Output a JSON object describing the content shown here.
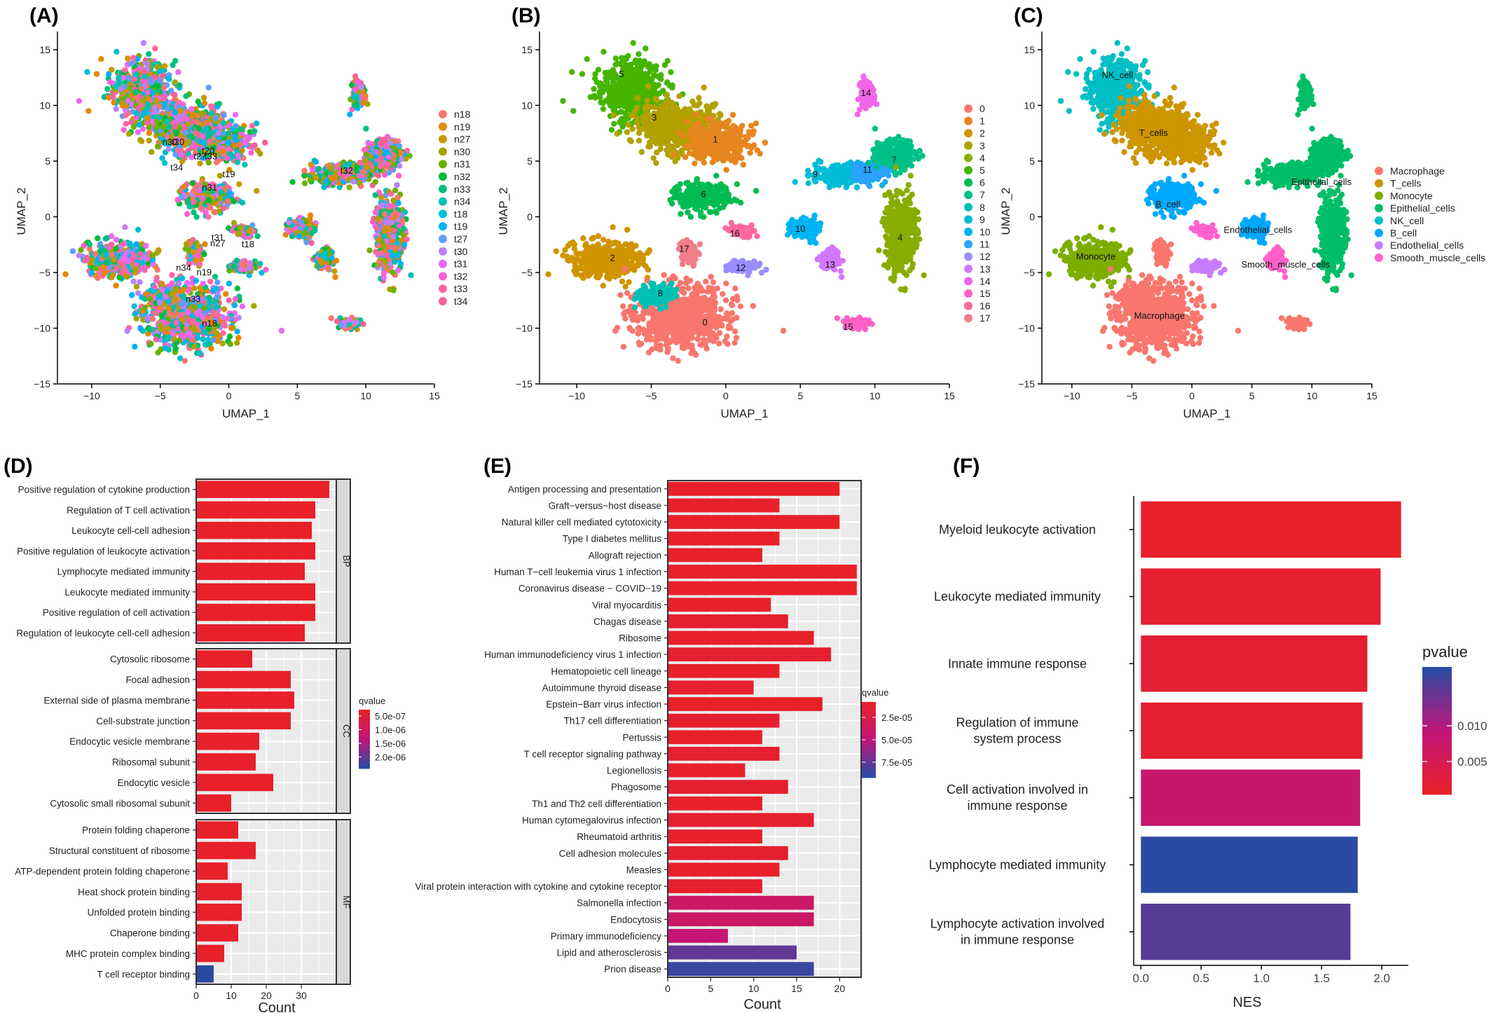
{
  "chart_data": [
    {
      "panel": "(A)",
      "type": "scatter",
      "xlabel": "UMAP_1",
      "ylabel": "UMAP_2",
      "xlim": [
        -12.5,
        15
      ],
      "ylim": [
        -15,
        16
      ],
      "xticks": [
        -10,
        -5,
        0,
        5,
        10,
        15
      ],
      "yticks": [
        -15,
        -10,
        -5,
        0,
        5,
        10,
        15
      ],
      "legend_position": "right",
      "legend": [
        "n18",
        "n19",
        "n27",
        "n30",
        "n31",
        "n32",
        "n33",
        "n34",
        "t18",
        "t19",
        "t27",
        "t30",
        "t31",
        "t32",
        "t33",
        "t34"
      ],
      "legend_colors": [
        "#F8766D",
        "#E58700",
        "#C99800",
        "#A3A500",
        "#6BB100",
        "#00BA38",
        "#00BF7D",
        "#00C0AF",
        "#00BCD8",
        "#00B0F6",
        "#619CFF",
        "#B983FF",
        "#E76BF3",
        "#FD61D1",
        "#FF67A4",
        "#F0649B"
      ],
      "cluster_labels": [
        {
          "text": "n30",
          "x": -4.3,
          "y": 6.7
        },
        {
          "text": "t30",
          "x": -3.7,
          "y": 6.7
        },
        {
          "text": "t20",
          "x": -1.5,
          "y": 5.9
        },
        {
          "text": "t27",
          "x": -2.1,
          "y": 5.4
        },
        {
          "text": "t33",
          "x": -1.3,
          "y": 5.4
        },
        {
          "text": "t34",
          "x": -3.8,
          "y": 4.4
        },
        {
          "text": "t19",
          "x": 0.0,
          "y": 3.8
        },
        {
          "text": "n31",
          "x": -1.4,
          "y": 2.6
        },
        {
          "text": "t32",
          "x": 8.6,
          "y": 4.1
        },
        {
          "text": "t31",
          "x": -0.8,
          "y": -1.9
        },
        {
          "text": "n27",
          "x": -0.8,
          "y": -2.4
        },
        {
          "text": "t18",
          "x": 1.4,
          "y": -2.5
        },
        {
          "text": "n34",
          "x": -3.3,
          "y": -4.6
        },
        {
          "text": "n19",
          "x": -1.8,
          "y": -5.0
        },
        {
          "text": "n33",
          "x": -2.6,
          "y": -7.4
        },
        {
          "text": "n18",
          "x": -1.4,
          "y": -9.6
        }
      ]
    },
    {
      "panel": "(B)",
      "type": "scatter",
      "xlabel": "UMAP_1",
      "ylabel": "UMAP_2",
      "xlim": [
        -12.5,
        15
      ],
      "ylim": [
        -15,
        16
      ],
      "xticks": [
        -10,
        -5,
        0,
        5,
        10,
        15
      ],
      "yticks": [
        -15,
        -10,
        -5,
        0,
        5,
        10,
        15
      ],
      "legend_position": "right",
      "legend": [
        "0",
        "1",
        "2",
        "3",
        "4",
        "5",
        "6",
        "7",
        "8",
        "9",
        "10",
        "11",
        "12",
        "13",
        "14",
        "15",
        "16",
        "17"
      ],
      "legend_colors": [
        "#F8766D",
        "#E7851E",
        "#D09400",
        "#B2A100",
        "#89AC00",
        "#45B500",
        "#00BC51",
        "#00C087",
        "#00C0B2",
        "#00BCD6",
        "#00B3F2",
        "#29A3FF",
        "#9C8DFF",
        "#D277FF",
        "#F166E8",
        "#FF61C7",
        "#FF689E",
        "#F07E8A"
      ],
      "cluster_labels": [
        {
          "text": "5",
          "x": -7.0,
          "y": 12.8
        },
        {
          "text": "3",
          "x": -4.8,
          "y": 8.9
        },
        {
          "text": "1",
          "x": -0.7,
          "y": 6.9
        },
        {
          "text": "14",
          "x": 9.4,
          "y": 11.1
        },
        {
          "text": "7",
          "x": 11.3,
          "y": 5.1
        },
        {
          "text": "11",
          "x": 9.5,
          "y": 4.2
        },
        {
          "text": "9",
          "x": 6.0,
          "y": 3.8
        },
        {
          "text": "6",
          "x": -1.5,
          "y": 2.0
        },
        {
          "text": "10",
          "x": 5.0,
          "y": -1.1
        },
        {
          "text": "16",
          "x": 0.6,
          "y": -1.5
        },
        {
          "text": "4",
          "x": 11.7,
          "y": -1.9
        },
        {
          "text": "17",
          "x": -2.8,
          "y": -2.9
        },
        {
          "text": "2",
          "x": -7.6,
          "y": -3.7
        },
        {
          "text": "12",
          "x": 1.0,
          "y": -4.6
        },
        {
          "text": "13",
          "x": 7.0,
          "y": -4.3
        },
        {
          "text": "8",
          "x": -4.4,
          "y": -6.9
        },
        {
          "text": "0",
          "x": -1.4,
          "y": -9.5
        },
        {
          "text": "15",
          "x": 8.2,
          "y": -9.9
        }
      ]
    },
    {
      "panel": "(C)",
      "type": "scatter",
      "xlabel": "UMAP_1",
      "ylabel": "UMAP_2",
      "xlim": [
        -12.5,
        15
      ],
      "ylim": [
        -15,
        16
      ],
      "xticks": [
        -10,
        -5,
        0,
        5,
        10,
        15
      ],
      "yticks": [
        -15,
        -10,
        -5,
        0,
        5,
        10,
        15
      ],
      "legend_position": "right",
      "legend": [
        "Macrophage",
        "T_cells",
        "Monocyte",
        "Epithelial_cells",
        "NK_cell",
        "B_cell",
        "Endothelial_cells",
        "Smooth_muscle_cells"
      ],
      "legend_colors": [
        "#F8766D",
        "#CD9600",
        "#7CAE00",
        "#00BE67",
        "#00BFC4",
        "#00A9FF",
        "#C77CFF",
        "#FF61CC"
      ],
      "cluster_labels": [
        {
          "text": "NK_cell",
          "x": -6.2,
          "y": 12.7
        },
        {
          "text": "T_cells",
          "x": -3.2,
          "y": 7.5
        },
        {
          "text": "Epithelial_cells",
          "x": 10.8,
          "y": 3.1
        },
        {
          "text": "B_cell",
          "x": -2.0,
          "y": 1.1
        },
        {
          "text": "Endothelial_cells",
          "x": 5.5,
          "y": -1.2
        },
        {
          "text": "Monocyte",
          "x": -8.0,
          "y": -3.6
        },
        {
          "text": "Smooth_muscle_cells",
          "x": 7.8,
          "y": -4.3
        },
        {
          "text": "Macrophage",
          "x": -2.7,
          "y": -8.9
        }
      ]
    },
    {
      "panel": "(D)",
      "type": "bar",
      "orientation": "horizontal",
      "xlabel": "Count",
      "xlim": [
        0,
        40
      ],
      "xticks": [
        0,
        10,
        20,
        30
      ],
      "legend_title": "qvalue",
      "legend_labels": [
        "5.0e-07",
        "1.0e-06",
        "1.5e-06",
        "2.0e-06"
      ],
      "facets": [
        {
          "name": "BP",
          "categories": [
            "Positive regulation of cytokine production",
            "Regulation of T cell activation",
            "Leukocyte cell-cell adhesion",
            "Positive regulation of leukocyte activation",
            "Lymphocyte mediated immunity",
            "Leukocyte mediated immunity",
            "Positive regulation of cell activation",
            "Regulation of leukocyte cell-cell adhesion"
          ],
          "values": [
            38,
            34,
            33,
            34,
            31,
            34,
            34,
            31
          ]
        },
        {
          "name": "CC",
          "categories": [
            "Cytosolic ribosome",
            "Focal adhesion",
            "External side of plasma membrane",
            "Cell-substrate junction",
            "Endocytic vesicle membrane",
            "Ribosomal subunit",
            "Endocytic vesicle",
            "Cytosolic small ribosomal subunit"
          ],
          "values": [
            16,
            27,
            28,
            27,
            18,
            17,
            22,
            10
          ]
        },
        {
          "name": "MF",
          "categories": [
            "Protein folding chaperone",
            "Structural constituent of ribosome",
            "ATP-dependent protein folding chaperone",
            "Heat shock protein binding",
            "Unfolded protein binding",
            "Chaperone binding",
            "MHC protein complex binding",
            "T cell receptor binding"
          ],
          "values": [
            12,
            17,
            9,
            13,
            13,
            12,
            8,
            5
          ],
          "qvalue_shading": [
            0,
            0,
            0,
            0,
            0,
            0,
            0,
            1
          ]
        }
      ]
    },
    {
      "panel": "(E)",
      "type": "bar",
      "orientation": "horizontal",
      "xlabel": "Count",
      "xlim": [
        0,
        22.5
      ],
      "xticks": [
        0,
        5,
        10,
        15,
        20
      ],
      "legend_title": "qvalue",
      "legend_labels": [
        "2.5e-05",
        "5.0e-05",
        "7.5e-05"
      ],
      "categories": [
        "Antigen processing and presentation",
        "Graft−versus−host disease",
        "Natural killer cell mediated cytotoxicity",
        "Type I diabetes mellitus",
        "Allograft rejection",
        "Human T−cell leukemia virus 1 infection",
        "Coronavirus disease − COVID−19",
        "Viral myocarditis",
        "Chagas disease",
        "Ribosome",
        "Human immunodeficiency virus 1 infection",
        "Hematopoietic cell lineage",
        "Autoimmune thyroid disease",
        "Epstein−Barr virus infection",
        "Th17 cell differentiation",
        "Pertussis",
        "T cell receptor signaling pathway",
        "Legionellosis",
        "Phagosome",
        "Th1 and Th2 cell differentiation",
        "Human cytomegalovirus infection",
        "Rheumatoid arthritis",
        "Cell adhesion molecules",
        "Measles",
        "Viral protein interaction with cytokine and cytokine receptor",
        "Salmonella infection",
        "Endocytosis",
        "Primary immunodeficiency",
        "Lipid and atherosclerosis",
        "Prion disease"
      ],
      "values": [
        20,
        13,
        20,
        13,
        11,
        22,
        22,
        12,
        14,
        17,
        19,
        13,
        10,
        18,
        13,
        11,
        13,
        9,
        14,
        11,
        17,
        11,
        14,
        13,
        11,
        17,
        17,
        7,
        15,
        17
      ],
      "qvalue_shading": [
        0,
        0,
        0,
        0,
        0,
        0,
        0,
        0,
        0.03,
        0,
        0.03,
        0,
        0.03,
        0,
        0.03,
        0,
        0.03,
        0,
        0.03,
        0,
        0.03,
        0,
        0.03,
        0,
        0.03,
        0.38,
        0.38,
        0.45,
        0.82,
        0.95
      ]
    },
    {
      "panel": "(F)",
      "type": "bar",
      "orientation": "horizontal",
      "xlabel": "NES",
      "xlim": [
        -0.06,
        2.22
      ],
      "xticks": [
        "0.0",
        "0.5",
        "1.0",
        "1.5",
        "2.0"
      ],
      "legend_title": "pvalue",
      "legend_labels": [
        "0.005",
        "0.010"
      ],
      "categories": [
        "Myeloid leukocyte activation",
        "Leukocyte mediated immunity",
        "Innate immune response",
        "Regulation of immune system process",
        "Cell activation involved in immune response",
        "Lymphocyte mediated immunity",
        "Lymphocyte activation involved in immune response"
      ],
      "values": [
        2.16,
        1.99,
        1.88,
        1.84,
        1.82,
        1.8,
        1.74
      ],
      "pvalue_shading": [
        0.0,
        0.04,
        0.06,
        0.05,
        0.42,
        1.0,
        0.85
      ]
    }
  ]
}
